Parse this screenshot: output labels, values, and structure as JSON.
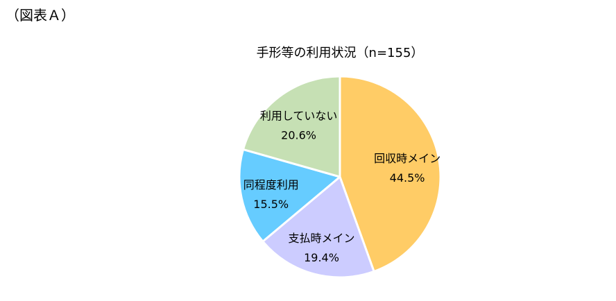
{
  "figure_label": "（図表Ａ）",
  "chart_data": {
    "type": "pie",
    "title": "手形等の利用状況（n=155）",
    "slices": [
      {
        "label": "回収時メイン",
        "value": 44.5,
        "value_label": "44.5%",
        "color": "#FFCC66"
      },
      {
        "label": "支払時メイン",
        "value": 19.4,
        "value_label": "19.4%",
        "color": "#CCCCFF"
      },
      {
        "label": "同程度利用",
        "value": 15.5,
        "value_label": "15.5%",
        "color": "#66CCFF"
      },
      {
        "label": "利用していない",
        "value": 20.6,
        "value_label": "20.6%",
        "color": "#C6E0B4"
      }
    ],
    "start": "12 o'clock",
    "direction": "clockwise"
  }
}
